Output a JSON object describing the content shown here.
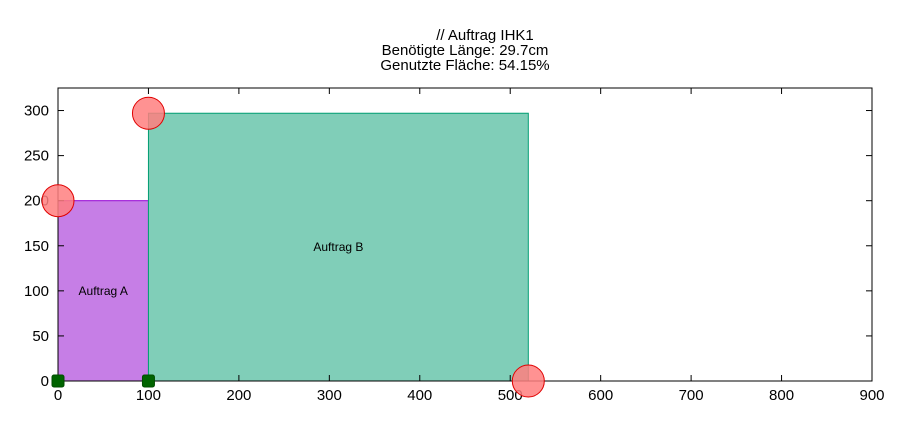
{
  "chart_data": {
    "type": "rectangle-packing",
    "title_lines": [
      "// Auftrag IHK1",
      "Benötigte Länge: 29.7cm",
      "Genutzte Fläche: 54.15%"
    ],
    "xlim": [
      0,
      900
    ],
    "ylim": [
      0,
      325
    ],
    "xticks": [
      0,
      100,
      200,
      300,
      400,
      500,
      600,
      700,
      800,
      900
    ],
    "yticks": [
      0,
      50,
      100,
      150,
      200,
      250,
      300
    ],
    "grid": false,
    "rectangles": [
      {
        "name": "Auftrag A",
        "x": 0,
        "y": 0,
        "width": 100,
        "height": 200,
        "fill": "#c67ee6",
        "stroke": "#9400d3"
      },
      {
        "name": "Auftrag B",
        "x": 100,
        "y": 0,
        "width": 420,
        "height": 297,
        "fill": "#80ceb8",
        "stroke": "#009e73"
      }
    ],
    "free_corner_points": [
      {
        "x": 0,
        "y": 200
      },
      {
        "x": 100,
        "y": 297
      },
      {
        "x": 520,
        "y": 0
      }
    ],
    "placement_points": [
      {
        "x": 0,
        "y": 0
      },
      {
        "x": 100,
        "y": 0
      }
    ],
    "colors": {
      "free_corner_fill": "#ff7f7f",
      "free_corner_stroke": "#e00000",
      "placement_fill": "#006400",
      "placement_stroke": "#004d00",
      "axis": "#000000"
    }
  }
}
